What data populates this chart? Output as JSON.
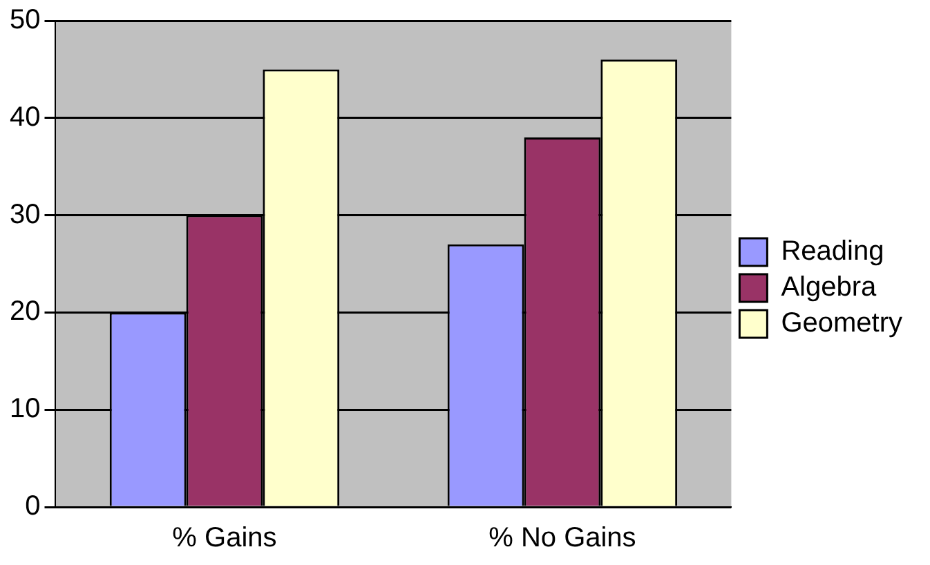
{
  "chart_data": {
    "type": "bar",
    "categories": [
      "% Gains",
      "% No Gains"
    ],
    "series": [
      {
        "name": "Reading",
        "color": "#9999ff",
        "values": [
          20,
          27
        ]
      },
      {
        "name": "Algebra",
        "color": "#993366",
        "values": [
          30,
          38
        ]
      },
      {
        "name": "Geometry",
        "color": "#ffffcc",
        "values": [
          45,
          46
        ]
      }
    ],
    "ylim": [
      0,
      50
    ],
    "yticks": [
      0,
      10,
      20,
      30,
      40,
      50
    ],
    "grid": "y",
    "legend": "right"
  }
}
